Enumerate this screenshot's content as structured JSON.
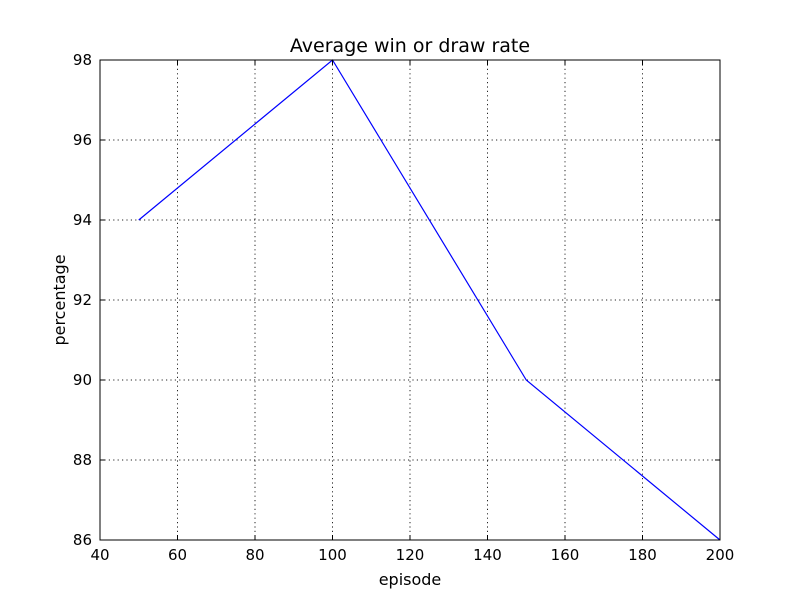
{
  "chart_data": {
    "type": "line",
    "title": "Average win or draw rate",
    "xlabel": "episode",
    "ylabel": "percentage",
    "xlim": [
      40,
      200
    ],
    "ylim": [
      86,
      98
    ],
    "xticks": [
      40,
      60,
      80,
      100,
      120,
      140,
      160,
      180,
      200
    ],
    "yticks": [
      86,
      88,
      90,
      92,
      94,
      96,
      98
    ],
    "grid": true,
    "legend": "none",
    "series": [
      {
        "color": "#0000ff",
        "points": [
          {
            "x": 50,
            "y": 94
          },
          {
            "x": 100,
            "y": 98
          },
          {
            "x": 150,
            "y": 90
          },
          {
            "x": 200,
            "y": 86
          }
        ]
      }
    ]
  }
}
